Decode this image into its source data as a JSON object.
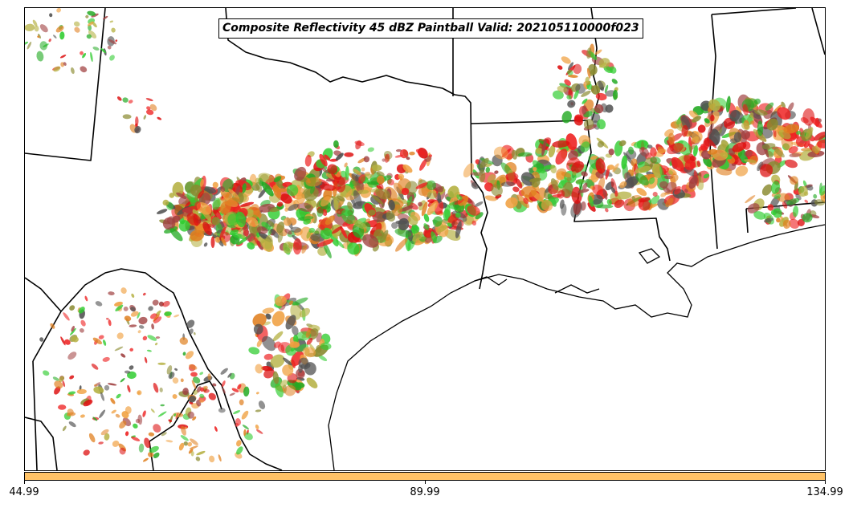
{
  "title": "Composite Reflectivity 45 dBZ Paintball Valid: 202105110000f023",
  "colorbar": {
    "color": "#ffc266",
    "ticks": [
      "44.99",
      "89.99",
      "134.99"
    ]
  },
  "paintball_colors": [
    "#ee2020",
    "#f0a040",
    "#30cc30",
    "#505050",
    "#b4b040",
    "#a04040",
    "#dd1010",
    "#e08020",
    "#22aa22",
    "#8a8a30"
  ],
  "map_style": {
    "boundary_color": "#000000",
    "background": "#ffffff"
  }
}
